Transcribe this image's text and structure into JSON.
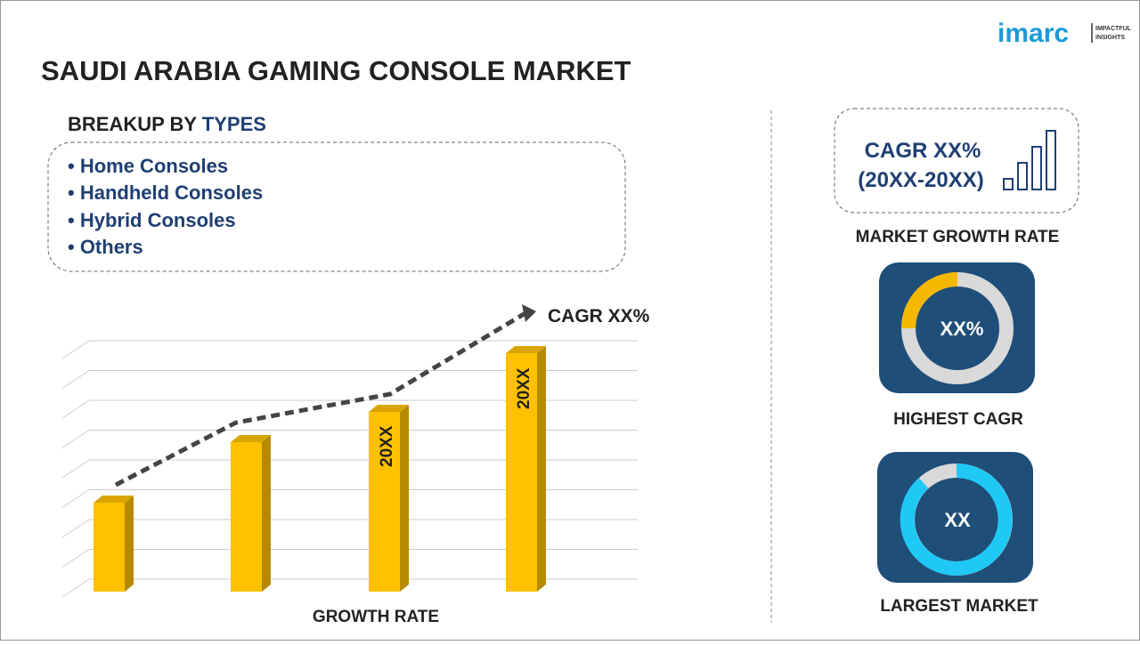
{
  "logo": {
    "brand": "imarc",
    "tagline": [
      "IMPACTFUL",
      "INSIGHTS"
    ]
  },
  "header": {
    "title": "SAUDI ARABIA GAMING CONSOLE MARKET"
  },
  "breakup": {
    "heading": "BREAKUP BY",
    "heading_accent": "TYPES",
    "items": [
      "• Home Consoles",
      "• Handheld Consoles",
      "• Hybrid Consoles",
      "• Others"
    ]
  },
  "growth_chart": {
    "cagr_label": "CAGR XX%",
    "bar_labels": [
      "20XX",
      "20XX"
    ],
    "caption": "GROWTH RATE"
  },
  "side": {
    "cagr_box": {
      "line1": "CAGR XX%",
      "line2": "(20XX-20XX)"
    },
    "cagr_caption": "MARKET GROWTH RATE",
    "highest": {
      "value": "XX%",
      "caption": "HIGHEST CAGR"
    },
    "largest": {
      "value": "XX",
      "caption": "LARGEST MARKET"
    }
  }
}
